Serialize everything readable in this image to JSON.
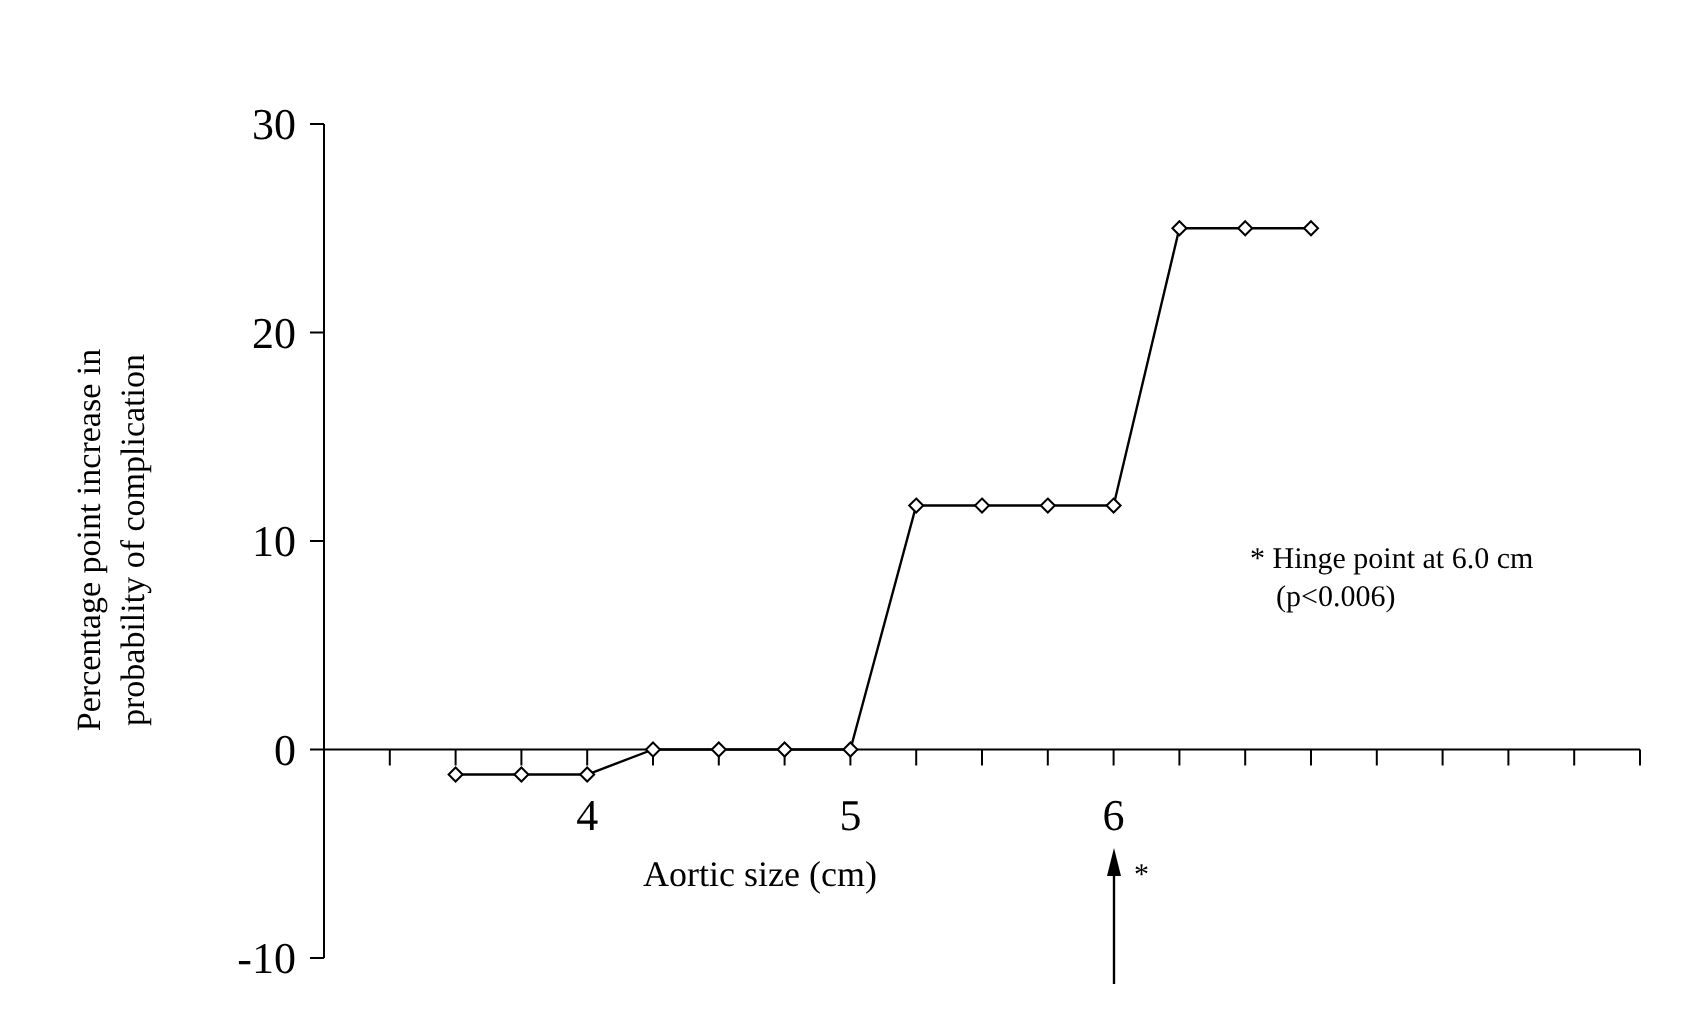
{
  "chart_data": {
    "type": "line",
    "xlabel": "Aortic size (cm)",
    "ylabel": "Percentage point increase in\nprobability of complication",
    "x": [
      3.5,
      3.75,
      4,
      4.25,
      4.5,
      4.75,
      5,
      5.25,
      5.5,
      5.75,
      6,
      6.25,
      6.5,
      6.75
    ],
    "series": [
      {
        "color": "#000000",
        "values": [
          -1.2,
          -1.2,
          -1.2,
          0,
          0,
          0,
          0,
          11.7,
          11.7,
          11.7,
          11.7,
          25,
          25,
          25
        ]
      }
    ],
    "marker": "diamond",
    "line_style": "solid",
    "grid": false,
    "xlim": [
      3,
      8
    ],
    "ylim": [
      -10,
      30
    ],
    "xticks": [
      {
        "value": 3.25,
        "label": null
      },
      {
        "value": 3.5,
        "label": null
      },
      {
        "value": 3.75,
        "label": null
      },
      4,
      {
        "value": 4.25,
        "label": null
      },
      {
        "value": 4.5,
        "label": null
      },
      {
        "value": 4.75,
        "label": null
      },
      5,
      {
        "value": 5.25,
        "label": null
      },
      {
        "value": 5.5,
        "label": null
      },
      {
        "value": 5.75,
        "label": null
      },
      6,
      {
        "value": 6.25,
        "label": null
      },
      {
        "value": 6.5,
        "label": null
      },
      {
        "value": 6.75,
        "label": null
      },
      {
        "value": 7,
        "label": null
      },
      {
        "value": 7.25,
        "label": null
      },
      {
        "value": 7.5,
        "label": null
      },
      {
        "value": 7.75,
        "label": null
      },
      {
        "value": 8,
        "label": null
      }
    ],
    "yticks": [
      -10,
      0,
      10,
      20,
      30
    ],
    "annotations": [
      "* Hinge point at 6.0 cm\n(p<0.006)",
      "*"
    ]
  }
}
